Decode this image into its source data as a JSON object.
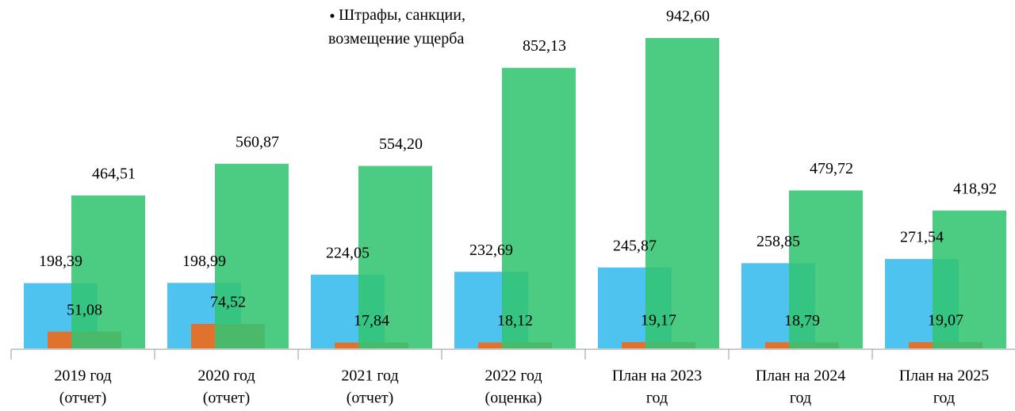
{
  "chart_data": {
    "type": "bar",
    "categories": [
      [
        "2019 год",
        "(отчет)"
      ],
      [
        "2020 год",
        "(отчет)"
      ],
      [
        "2021 год",
        "(отчет)"
      ],
      [
        "2022 год",
        "(оценка)"
      ],
      [
        "План  на 2023",
        "год"
      ],
      [
        "План на 2024",
        "год"
      ],
      [
        "План на 2025",
        "год"
      ]
    ],
    "series": [
      {
        "color": "#4fc3f0",
        "values": [
          198.39,
          198.99,
          224.05,
          232.69,
          245.87,
          258.85,
          271.54
        ],
        "value_labels": [
          "198,39",
          "198,99",
          "224,05",
          "232,69",
          "245,87",
          "258,85",
          "271,54"
        ]
      },
      {
        "color": "#e0722e",
        "values": [
          51.08,
          74.52,
          17.84,
          18.12,
          19.17,
          18.79,
          19.07
        ],
        "value_labels": [
          "51,08",
          "74,52",
          "17,84",
          "18,12",
          "19,17",
          "18,79",
          "19,07"
        ]
      },
      {
        "name": "Штрафы, санкции, возмещение ущерба",
        "color": "#33c472",
        "values": [
          464.51,
          560.87,
          554.2,
          852.13,
          942.6,
          479.72,
          418.92
        ],
        "value_labels": [
          "464,51",
          "560,87",
          "554,20",
          "852,13",
          "942,60",
          "479,72",
          "418,92"
        ]
      }
    ]
  }
}
